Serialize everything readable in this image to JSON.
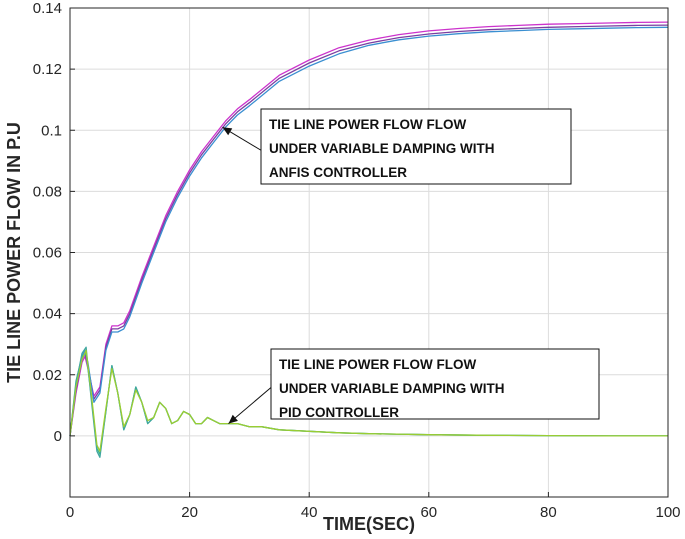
{
  "chart_data": {
    "type": "line",
    "title": "",
    "xlabel": "TIME(SEC)",
    "ylabel": "TIE LINE POWER FLOW IN P.U",
    "xlim": [
      0,
      100
    ],
    "ylim": [
      -0.02,
      0.14
    ],
    "x_ticks": [
      "0",
      "20",
      "40",
      "60",
      "80",
      "100"
    ],
    "y_ticks": [
      "0",
      "0.02",
      "0.04",
      "0.06",
      "0.08",
      "0.1",
      "0.12",
      "0.14"
    ],
    "grid": true,
    "colors": {
      "anfis_a": "#cc33cc",
      "anfis_b": "#7b3fa0",
      "anfis_c": "#3a8fd1",
      "pid_a": "#44b58c",
      "pid_b": "#3fa7a0",
      "pid_c": "#9acd32"
    },
    "series": [
      {
        "color_key": "anfis_a",
        "x": [
          0,
          1,
          2,
          2.5,
          3,
          4,
          5,
          6,
          7,
          8,
          9,
          10,
          12,
          14,
          16,
          18,
          20,
          22,
          24,
          26,
          28,
          30,
          35,
          40,
          45,
          50,
          55,
          60,
          65,
          70,
          75,
          80,
          85,
          90,
          95,
          100
        ],
        "values": [
          0,
          0.014,
          0.024,
          0.026,
          0.022,
          0.013,
          0.016,
          0.03,
          0.036,
          0.036,
          0.037,
          0.041,
          0.052,
          0.062,
          0.072,
          0.08,
          0.087,
          0.093,
          0.098,
          0.103,
          0.107,
          0.11,
          0.118,
          0.123,
          0.127,
          0.1295,
          0.1313,
          0.1325,
          0.1333,
          0.1339,
          0.1343,
          0.1347,
          0.1349,
          0.1351,
          0.1353,
          0.1354
        ]
      },
      {
        "color_key": "anfis_b",
        "x": [
          0,
          1,
          2,
          2.5,
          3,
          4,
          5,
          6,
          7,
          8,
          9,
          10,
          12,
          14,
          16,
          18,
          20,
          22,
          24,
          26,
          28,
          30,
          35,
          40,
          45,
          50,
          55,
          60,
          65,
          70,
          75,
          80,
          85,
          90,
          95,
          100
        ],
        "values": [
          0,
          0.015,
          0.025,
          0.027,
          0.023,
          0.012,
          0.015,
          0.029,
          0.035,
          0.035,
          0.036,
          0.04,
          0.051,
          0.061,
          0.071,
          0.079,
          0.086,
          0.092,
          0.097,
          0.102,
          0.106,
          0.109,
          0.117,
          0.122,
          0.126,
          0.1285,
          0.1303,
          0.1315,
          0.1323,
          0.1329,
          0.1333,
          0.1337,
          0.1339,
          0.1341,
          0.1343,
          0.1344
        ]
      },
      {
        "color_key": "anfis_c",
        "x": [
          0,
          1,
          2,
          2.5,
          3,
          4,
          5,
          6,
          7,
          8,
          9,
          10,
          12,
          14,
          16,
          18,
          20,
          22,
          24,
          26,
          28,
          30,
          35,
          40,
          45,
          50,
          55,
          60,
          65,
          70,
          75,
          80,
          85,
          90,
          95,
          100
        ],
        "values": [
          0,
          0.016,
          0.026,
          0.028,
          0.024,
          0.011,
          0.014,
          0.028,
          0.034,
          0.034,
          0.035,
          0.039,
          0.05,
          0.06,
          0.07,
          0.078,
          0.085,
          0.091,
          0.096,
          0.101,
          0.105,
          0.108,
          0.116,
          0.121,
          0.125,
          0.1278,
          0.1296,
          0.1308,
          0.1316,
          0.1322,
          0.1326,
          0.133,
          0.1332,
          0.1334,
          0.1336,
          0.1337
        ]
      },
      {
        "color_key": "pid_a",
        "x": [
          0,
          1,
          2,
          2.7,
          3.5,
          4.5,
          5,
          6,
          7,
          8,
          9,
          10,
          11,
          12,
          13,
          14,
          15,
          16,
          17,
          18,
          19,
          20,
          21,
          22,
          23,
          24,
          25,
          26,
          27,
          28,
          30,
          32,
          35,
          40,
          45,
          50,
          60,
          70,
          80,
          90,
          100
        ],
        "values": [
          0,
          0.018,
          0.026,
          0.027,
          0.014,
          -0.004,
          -0.006,
          0.008,
          0.023,
          0.014,
          0.002,
          0.007,
          0.016,
          0.011,
          0.004,
          0.006,
          0.011,
          0.009,
          0.004,
          0.005,
          0.008,
          0.007,
          0.004,
          0.004,
          0.006,
          0.005,
          0.004,
          0.004,
          0.004,
          0.004,
          0.003,
          0.003,
          0.002,
          0.0015,
          0.001,
          0.0007,
          0.0004,
          0.0002,
          0.0001,
          0.0,
          0.0
        ]
      },
      {
        "color_key": "pid_b",
        "x": [
          0,
          1,
          2,
          2.7,
          3.5,
          4.5,
          5,
          6,
          7,
          8,
          9,
          10,
          11,
          12,
          13,
          14,
          15,
          16,
          17,
          18,
          19,
          20,
          21,
          22,
          23,
          24,
          25,
          26,
          27,
          28,
          30,
          32,
          35,
          40,
          45,
          50,
          60,
          70,
          80,
          90,
          100
        ],
        "values": [
          0,
          0.017,
          0.027,
          0.029,
          0.013,
          -0.005,
          -0.007,
          0.008,
          0.023,
          0.014,
          0.002,
          0.007,
          0.016,
          0.011,
          0.004,
          0.006,
          0.011,
          0.009,
          0.004,
          0.005,
          0.008,
          0.007,
          0.004,
          0.004,
          0.006,
          0.005,
          0.004,
          0.004,
          0.004,
          0.004,
          0.003,
          0.003,
          0.002,
          0.0015,
          0.001,
          0.0007,
          0.0004,
          0.0002,
          0.0001,
          0.0,
          0.0
        ]
      },
      {
        "color_key": "pid_c",
        "x": [
          0,
          1,
          2,
          2.7,
          3.5,
          4.5,
          5,
          6,
          7,
          8,
          9,
          10,
          11,
          12,
          13,
          14,
          15,
          16,
          17,
          18,
          19,
          20,
          21,
          22,
          23,
          24,
          25,
          26,
          27,
          28,
          30,
          32,
          35,
          40,
          45,
          50,
          60,
          70,
          80,
          90,
          100
        ],
        "values": [
          0,
          0.016,
          0.025,
          0.028,
          0.015,
          -0.003,
          -0.005,
          0.009,
          0.022,
          0.014,
          0.003,
          0.007,
          0.015,
          0.011,
          0.005,
          0.006,
          0.011,
          0.009,
          0.004,
          0.005,
          0.008,
          0.007,
          0.004,
          0.004,
          0.006,
          0.005,
          0.004,
          0.004,
          0.004,
          0.004,
          0.003,
          0.003,
          0.002,
          0.0015,
          0.001,
          0.0007,
          0.0004,
          0.0002,
          0.0001,
          0.0,
          0.0
        ]
      }
    ],
    "annotations": [
      {
        "lines": [
          "TIE LINE POWER FLOW FLOW",
          "UNDER VARIABLE DAMPING WITH",
          "ANFIS CONTROLLER"
        ],
        "arrow_to": [
          25.5,
          0.101
        ]
      },
      {
        "lines": [
          "TIE LINE POWER FLOW FLOW",
          "UNDER VARIABLE DAMPING WITH",
          "PID CONTROLLER"
        ],
        "arrow_to": [
          26.5,
          0.004
        ]
      }
    ]
  }
}
